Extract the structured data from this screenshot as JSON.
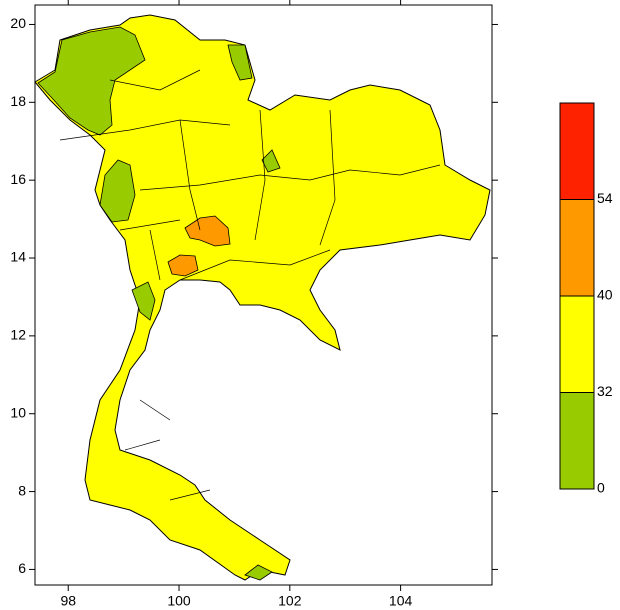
{
  "map": {
    "xlim": [
      97.4,
      105.65
    ],
    "ylim": [
      5.6,
      20.5
    ],
    "xticks": [
      98,
      100,
      102,
      104
    ],
    "yticks": [
      6,
      8,
      10,
      12,
      14,
      16,
      18,
      20
    ],
    "legend": {
      "levels": [
        0,
        32,
        40,
        54
      ],
      "colors": [
        "#99cc00",
        "#ffff00",
        "#ff9900",
        "#ff2200"
      ]
    }
  }
}
